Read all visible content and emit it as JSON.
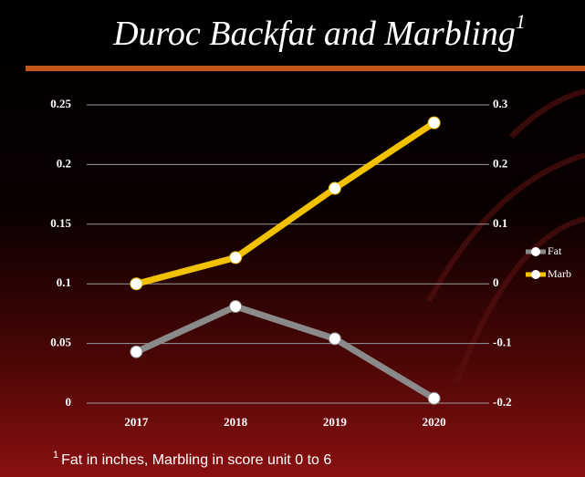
{
  "chart_data": {
    "type": "line",
    "title": "Duroc Backfat and Marbling",
    "title_superscript": "1",
    "footnote_marker": "1",
    "footnote": "Fat in inches, Marbling in score unit 0 to 6",
    "categories": [
      "2017",
      "2018",
      "2019",
      "2020"
    ],
    "series": [
      {
        "name": "Fat",
        "color": "#8a8a8a",
        "values": [
          0.043,
          0.081,
          0.054,
          0.004
        ]
      },
      {
        "name": "Marb",
        "color": "#f2c200",
        "axis": "y2",
        "values": [
          0.0,
          0.044,
          0.16,
          0.27
        ]
      }
    ],
    "ylim": [
      0,
      0.25
    ],
    "yticks": [
      0,
      0.05,
      0.1,
      0.15,
      0.2,
      0.25
    ],
    "y2lim": [
      -0.2,
      0.3
    ],
    "y2ticks": [
      -0.2,
      -0.1,
      0,
      0.1,
      0.2,
      0.3
    ],
    "grid": true,
    "legend": "right"
  }
}
